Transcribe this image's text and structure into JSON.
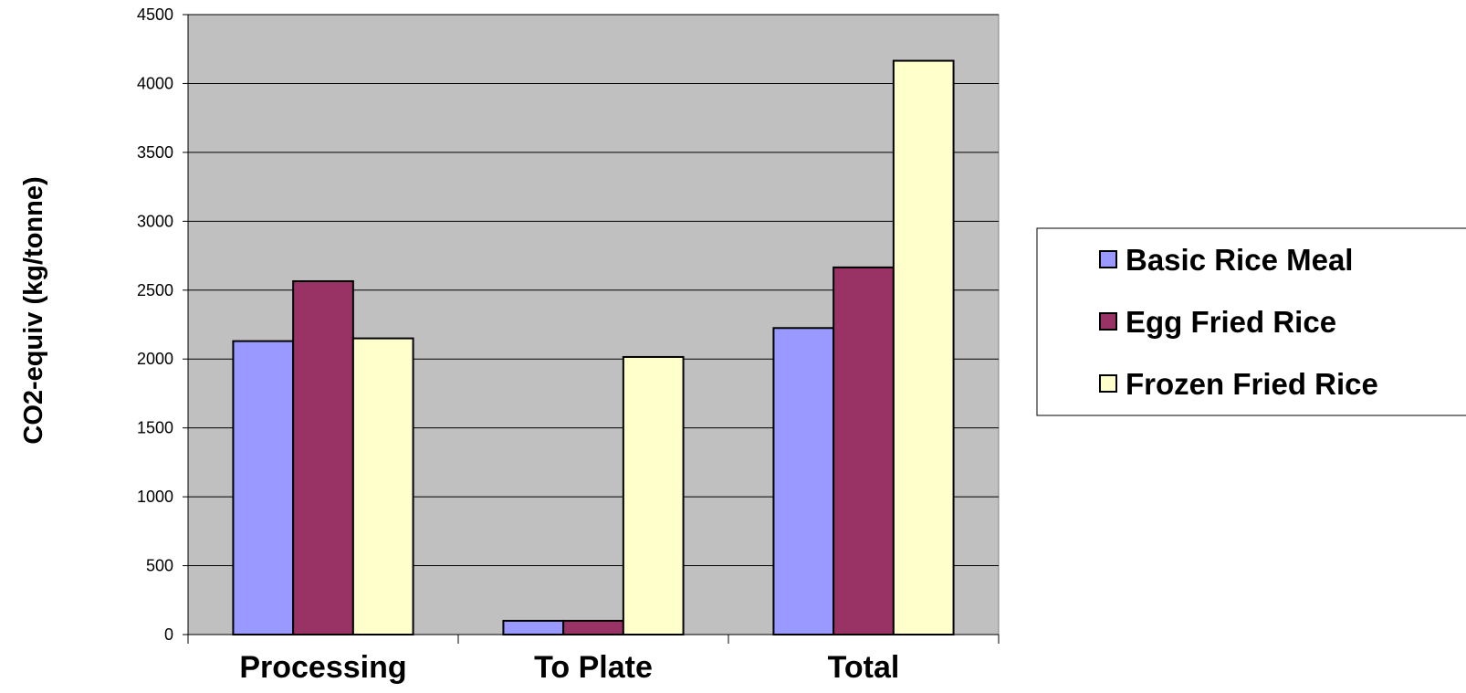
{
  "chart_data": {
    "type": "bar",
    "title": "",
    "xlabel": "",
    "ylabel": "CO2-equiv (kg/tonne)",
    "categories": [
      "Processing",
      "To Plate",
      "Total"
    ],
    "series": [
      {
        "name": "Basic Rice Meal",
        "color": "#9999ff",
        "values": [
          2130,
          100,
          2225
        ]
      },
      {
        "name": "Egg Fried Rice",
        "color": "#993366",
        "values": [
          2565,
          100,
          2665
        ]
      },
      {
        "name": "Frozen Fried Rice",
        "color": "#ffffcc",
        "values": [
          2150,
          2015,
          4165
        ]
      }
    ],
    "ylim": [
      0,
      4500
    ],
    "yticks": [
      "0",
      "500",
      "1000",
      "1500",
      "2000",
      "2500",
      "3000",
      "3500",
      "4000",
      "4500"
    ],
    "grid": true,
    "plot_background": "#c0c0c0",
    "legend_position": "right"
  }
}
